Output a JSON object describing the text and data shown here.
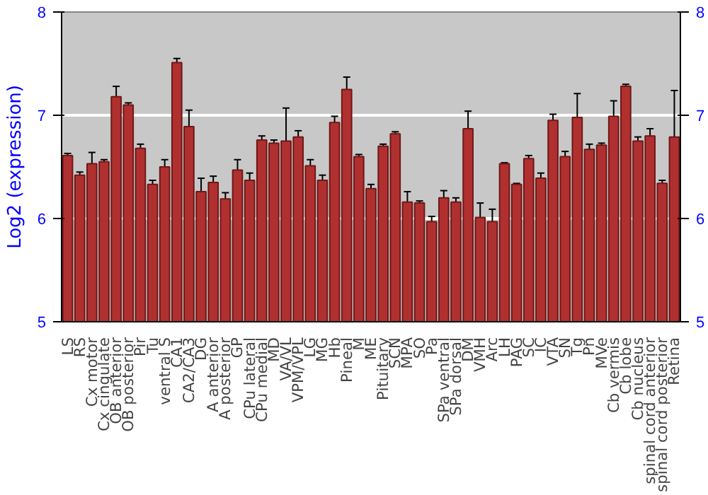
{
  "chart_data": {
    "type": "bar",
    "ylabel": "Log2 (expression)",
    "categories": [
      "LS",
      "RS",
      "Cx motor",
      "Cx cingulate",
      "OB anterior",
      "OB posterior",
      "Pir",
      "Tu",
      "ventral S",
      "CA1",
      "CA2/CA3",
      "DG",
      "A anterior",
      "A posterior",
      "GP",
      "CPu lateral",
      "CPu medial",
      "MD",
      "VA/VL",
      "VPM/VPL",
      "LG",
      "MG",
      "Hb",
      "Pineal",
      "M",
      "ME",
      "Pituitary",
      "SCN",
      "MPA",
      "SO",
      "Pa",
      "SPa ventral",
      "SPa dorsal",
      "DM",
      "VMH",
      "Arc",
      "LH",
      "PAG",
      "SC",
      "IC",
      "VTA",
      "SN",
      "Tg",
      "Pn",
      "MVe",
      "Cb vermis",
      "Cb lobe",
      "Cb nucleus",
      "spinal cord anterior",
      "spinal cord posterior",
      "Retina"
    ],
    "values": [
      6.61,
      6.42,
      6.53,
      6.55,
      7.18,
      7.1,
      6.68,
      6.33,
      6.5,
      7.51,
      6.89,
      6.26,
      6.35,
      6.19,
      6.47,
      6.37,
      6.76,
      6.73,
      6.75,
      6.79,
      6.51,
      6.37,
      6.93,
      7.25,
      6.6,
      6.29,
      6.7,
      6.82,
      6.16,
      6.15,
      5.97,
      6.2,
      6.16,
      6.87,
      6.01,
      5.97,
      6.53,
      6.33,
      6.58,
      6.39,
      6.95,
      6.6,
      6.98,
      6.67,
      6.71,
      6.99,
      7.28,
      6.75,
      6.8,
      6.34,
      6.79
    ],
    "errors": [
      0.02,
      0.03,
      0.11,
      0.02,
      0.1,
      0.02,
      0.04,
      0.04,
      0.07,
      0.04,
      0.16,
      0.13,
      0.06,
      0.06,
      0.1,
      0.07,
      0.04,
      0.03,
      0.32,
      0.06,
      0.06,
      0.05,
      0.06,
      0.12,
      0.02,
      0.04,
      0.02,
      0.02,
      0.1,
      0.02,
      0.05,
      0.07,
      0.04,
      0.17,
      0.14,
      0.12,
      0.01,
      0.01,
      0.03,
      0.05,
      0.06,
      0.05,
      0.23,
      0.05,
      0.02,
      0.15,
      0.02,
      0.04,
      0.07,
      0.03,
      0.45
    ],
    "color": "#b03030",
    "ylim": [
      5,
      8
    ],
    "yticks": [
      5,
      6,
      7,
      8
    ],
    "y2lim": [
      5,
      8
    ],
    "y2ticks": [
      5,
      6,
      7,
      8
    ],
    "grid": "y"
  }
}
